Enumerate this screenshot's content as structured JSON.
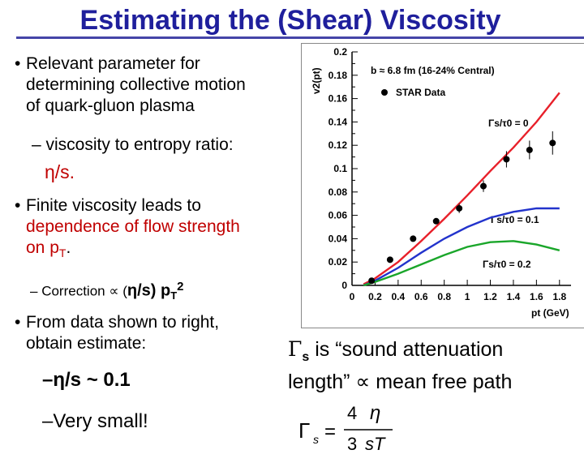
{
  "slide": {
    "title": "Estimating the (Shear) Viscosity",
    "bullets": [
      {
        "lines": [
          "Relevant parameter for",
          "determining collective motion",
          "of quark-gluon plasma"
        ]
      },
      {
        "sub": "viscosity to entropy ratio:",
        "expr": "η/s."
      },
      {
        "lines_black": "Finite viscosity leads to",
        "lines_red": [
          "dependence of flow strength",
          "on p"
        ],
        "red_sub": "T",
        "tail": "."
      },
      {
        "correction_label": "Correction ∝ (",
        "correction_expr": "η/s) p",
        "correction_sub": "T",
        "correction_sup": "2"
      },
      {
        "lines": [
          "From data shown to right,",
          "obtain estimate:"
        ]
      },
      {
        "estimate": "–η/s ~ 0.1"
      },
      {
        "small": "–Very small!"
      }
    ],
    "note": {
      "line1_symbol": "Γ",
      "line1_sub": "s",
      "line1_rest": " is “sound attenuation",
      "line2": "length” ∝ mean free path"
    },
    "formula": {
      "lhs": "Γ",
      "lhs_sub": "s",
      "num": "4",
      "eta": "η",
      "den_left": "3",
      "den_right": "sT"
    }
  },
  "chart_data": {
    "type": "scatter",
    "ylabel": "v2(pt)",
    "xlabel": "pt (GeV)",
    "xlim": [
      0,
      1.9
    ],
    "ylim": [
      0,
      0.2
    ],
    "x_ticks": [
      "0",
      "0.2",
      "0.4",
      "0.6",
      "0.8",
      "1",
      "1.2",
      "1.4",
      "1.6",
      "1.8"
    ],
    "y_ticks": [
      "0",
      "0.02",
      "0.04",
      "0.06",
      "0.08",
      "0.1",
      "0.12",
      "0.14",
      "0.16",
      "0.18",
      "0.2"
    ],
    "annotations": {
      "centrality": "b ≈ 6.8 fm (16-24% Central)",
      "legend_data": "STAR Data",
      "label_red": "Γs/τ0 = 0",
      "label_blue": "Γs/τ0 = 0.1",
      "label_green": "Γs/τ0 = 0.2"
    },
    "series": [
      {
        "name": "STAR Data",
        "color": "#000000",
        "x": [
          0.17,
          0.33,
          0.53,
          0.73,
          0.93,
          1.14,
          1.34,
          1.54,
          1.74
        ],
        "y": [
          0.004,
          0.022,
          0.04,
          0.055,
          0.066,
          0.085,
          0.108,
          0.116,
          0.122
        ],
        "err": [
          0.002,
          0.002,
          0.002,
          0.002,
          0.004,
          0.005,
          0.007,
          0.008,
          0.01
        ]
      },
      {
        "name": "Γs/τ0 = 0",
        "color": "#e8202a",
        "x": [
          0.1,
          0.2,
          0.4,
          0.6,
          0.8,
          1.0,
          1.2,
          1.4,
          1.6,
          1.8
        ],
        "y": [
          0.001,
          0.006,
          0.02,
          0.038,
          0.057,
          0.077,
          0.098,
          0.118,
          0.14,
          0.165
        ]
      },
      {
        "name": "Γs/τ0 = 0.1",
        "color": "#2233cc",
        "x": [
          0.1,
          0.2,
          0.4,
          0.6,
          0.8,
          1.0,
          1.2,
          1.4,
          1.6,
          1.8
        ],
        "y": [
          0.0,
          0.004,
          0.015,
          0.028,
          0.04,
          0.05,
          0.058,
          0.063,
          0.066,
          0.066
        ]
      },
      {
        "name": "Γs/τ0 = 0.2",
        "color": "#1aa62a",
        "x": [
          0.1,
          0.2,
          0.4,
          0.6,
          0.8,
          1.0,
          1.2,
          1.4,
          1.6,
          1.8
        ],
        "y": [
          0.0,
          0.003,
          0.01,
          0.018,
          0.026,
          0.033,
          0.037,
          0.038,
          0.035,
          0.03
        ]
      }
    ],
    "grid": false
  }
}
